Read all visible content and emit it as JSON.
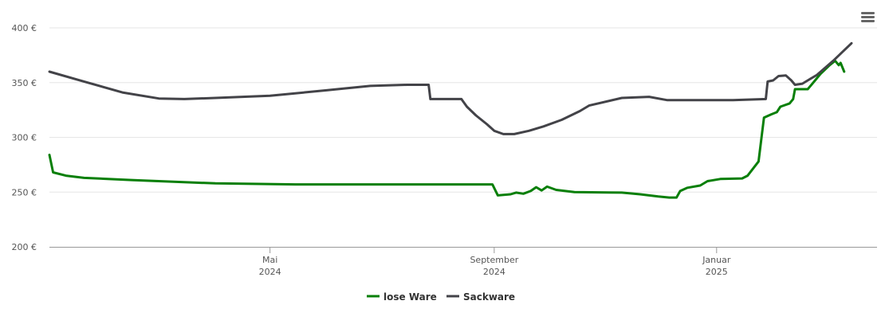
{
  "menu": {
    "icon": "hamburger-menu-icon"
  },
  "chart_data": {
    "type": "line",
    "x_type": "date",
    "x_range": [
      "2024-01-01",
      "2025-03-30"
    ],
    "ylim": [
      200,
      400
    ],
    "y_ticks": [
      {
        "value": 200,
        "label": "200 €"
      },
      {
        "value": 250,
        "label": "250 €"
      },
      {
        "value": 300,
        "label": "300 €"
      },
      {
        "value": 350,
        "label": "350 €"
      },
      {
        "value": 400,
        "label": "400 €"
      }
    ],
    "x_ticks": [
      {
        "date": "2024-05-01",
        "line1": "Mai",
        "line2": "2024"
      },
      {
        "date": "2024-09-01",
        "line1": "September",
        "line2": "2024"
      },
      {
        "date": "2025-01-01",
        "line1": "Januar",
        "line2": "2025"
      }
    ],
    "grid": "horizontal",
    "legend_position": "bottom-center",
    "series": [
      {
        "name": "lose Ware",
        "color": "#087f08",
        "points": [
          [
            "2024-01-01",
            284
          ],
          [
            "2024-01-03",
            268
          ],
          [
            "2024-01-10",
            265
          ],
          [
            "2024-01-20",
            263
          ],
          [
            "2024-02-15",
            261
          ],
          [
            "2024-04-01",
            258
          ],
          [
            "2024-05-15",
            257
          ],
          [
            "2024-07-01",
            257
          ],
          [
            "2024-08-31",
            257
          ],
          [
            "2024-09-03",
            247
          ],
          [
            "2024-09-10",
            248
          ],
          [
            "2024-09-13",
            249.5
          ],
          [
            "2024-09-17",
            248.5
          ],
          [
            "2024-09-21",
            251
          ],
          [
            "2024-09-24",
            254.5
          ],
          [
            "2024-09-27",
            251.5
          ],
          [
            "2024-09-30",
            255
          ],
          [
            "2024-10-05",
            252
          ],
          [
            "2024-10-15",
            250
          ],
          [
            "2024-11-10",
            249.5
          ],
          [
            "2024-11-20",
            248
          ],
          [
            "2024-11-30",
            246
          ],
          [
            "2024-12-06",
            245
          ],
          [
            "2024-12-10",
            245
          ],
          [
            "2024-12-12",
            251
          ],
          [
            "2024-12-16",
            254
          ],
          [
            "2024-12-23",
            256
          ],
          [
            "2024-12-27",
            260
          ],
          [
            "2025-01-03",
            262
          ],
          [
            "2025-01-15",
            262.5
          ],
          [
            "2025-01-18",
            265
          ],
          [
            "2025-01-24",
            278
          ],
          [
            "2025-01-27",
            318
          ],
          [
            "2025-01-31",
            321
          ],
          [
            "2025-02-03",
            323
          ],
          [
            "2025-02-05",
            328
          ],
          [
            "2025-02-10",
            331
          ],
          [
            "2025-02-12",
            335
          ],
          [
            "2025-02-13",
            344
          ],
          [
            "2025-02-20",
            344
          ],
          [
            "2025-02-24",
            352
          ],
          [
            "2025-02-27",
            358
          ],
          [
            "2025-03-04",
            366
          ],
          [
            "2025-03-07",
            370
          ],
          [
            "2025-03-09",
            366
          ],
          [
            "2025-03-10",
            368
          ],
          [
            "2025-03-12",
            360
          ]
        ]
      },
      {
        "name": "Sackware",
        "color": "#434348",
        "points": [
          [
            "2024-01-01",
            360
          ],
          [
            "2024-01-20",
            351
          ],
          [
            "2024-02-10",
            341
          ],
          [
            "2024-03-01",
            335.5
          ],
          [
            "2024-03-15",
            335
          ],
          [
            "2024-04-01",
            336
          ],
          [
            "2024-05-01",
            338
          ],
          [
            "2024-06-01",
            343
          ],
          [
            "2024-06-25",
            347
          ],
          [
            "2024-07-15",
            348
          ],
          [
            "2024-07-27",
            348
          ],
          [
            "2024-07-28",
            335
          ],
          [
            "2024-08-14",
            335
          ],
          [
            "2024-08-17",
            328
          ],
          [
            "2024-08-22",
            320
          ],
          [
            "2024-08-28",
            312
          ],
          [
            "2024-09-01",
            306
          ],
          [
            "2024-09-06",
            303
          ],
          [
            "2024-09-12",
            303
          ],
          [
            "2024-09-20",
            306
          ],
          [
            "2024-09-28",
            310
          ],
          [
            "2024-10-08",
            316
          ],
          [
            "2024-10-18",
            324
          ],
          [
            "2024-10-23",
            329
          ],
          [
            "2024-11-10",
            336
          ],
          [
            "2024-11-25",
            337
          ],
          [
            "2024-12-05",
            334
          ],
          [
            "2024-12-15",
            334
          ],
          [
            "2025-01-10",
            334
          ],
          [
            "2025-01-28",
            335
          ],
          [
            "2025-01-29",
            351
          ],
          [
            "2025-02-01",
            352
          ],
          [
            "2025-02-04",
            356
          ],
          [
            "2025-02-08",
            356.5
          ],
          [
            "2025-02-11",
            352
          ],
          [
            "2025-02-13",
            348
          ],
          [
            "2025-02-17",
            349
          ],
          [
            "2025-02-20",
            352
          ],
          [
            "2025-02-25",
            357
          ],
          [
            "2025-03-06",
            370
          ],
          [
            "2025-03-16",
            386
          ]
        ]
      }
    ]
  }
}
